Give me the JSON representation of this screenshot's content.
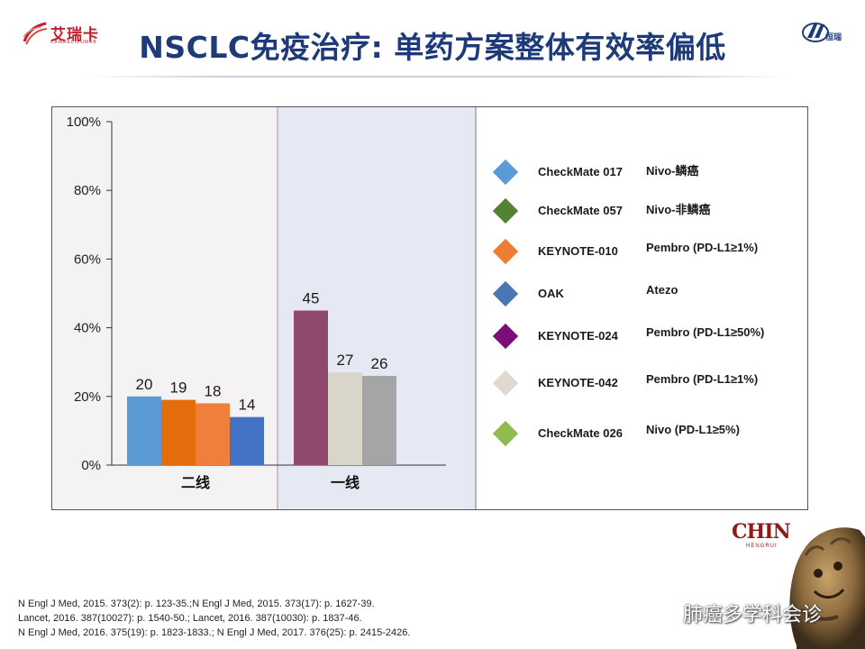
{
  "header": {
    "title": "NSCLC免疫治疗: 单药方案整体有效率偏低",
    "left_logo": {
      "brand": "艾瑞卡",
      "subtitle": "CAMRELIZUMAB",
      "icon": "ribbon-logo-icon"
    },
    "right_logo": {
      "text": "恒瑞",
      "icon": "hengrui-logo-icon"
    }
  },
  "colors": {
    "title": "#1e3a78",
    "panel_left_bg": "#f4f2f2",
    "panel_mid_bg": "#e6e9f4"
  },
  "chart_data": {
    "type": "bar",
    "categories": [
      "二线",
      "一线"
    ],
    "ylim": [
      0,
      100
    ],
    "y_ticks": [
      {
        "value": 0,
        "label": "0%"
      },
      {
        "value": 20,
        "label": "20%"
      },
      {
        "value": 40,
        "label": "40%"
      },
      {
        "value": 60,
        "label": "60%"
      },
      {
        "value": 80,
        "label": "80%"
      },
      {
        "value": 100,
        "label": "100%"
      }
    ],
    "groups": [
      {
        "category": "二线",
        "bars": [
          {
            "series": "CheckMate 017",
            "value": 20,
            "label": "20",
            "color": "#5b9bd5"
          },
          {
            "series": "CheckMate 057",
            "value": 19,
            "label": "19",
            "color": "#e46c0a"
          },
          {
            "series": "KEYNOTE-010",
            "value": 18,
            "label": "18",
            "color": "#f07f3c"
          },
          {
            "series": "OAK",
            "value": 14,
            "label": "14",
            "color": "#4472c4"
          }
        ]
      },
      {
        "category": "一线",
        "bars": [
          {
            "series": "KEYNOTE-024",
            "value": 45,
            "label": "45",
            "color": "#8e4a6c"
          },
          {
            "series": "KEYNOTE-042",
            "value": 27,
            "label": "27",
            "color": "#d9d5c9"
          },
          {
            "series": "CheckMate 026",
            "value": 26,
            "label": "26",
            "color": "#a5a5a5"
          }
        ]
      }
    ],
    "legend": [
      {
        "name": "CheckMate 017",
        "desc": "Nivo-鳞癌",
        "color": "#5b9bd5"
      },
      {
        "name": "CheckMate 057",
        "desc": "Nivo-非鳞癌",
        "color": "#548235"
      },
      {
        "name": "KEYNOTE-010",
        "desc": "Pembro (PD-L1≥1%)",
        "color": "#ed7d31"
      },
      {
        "name": "OAK",
        "desc": "Atezo",
        "color": "#4a76b5"
      },
      {
        "name": "KEYNOTE-024",
        "desc": "Pembro (PD-L1≥50%)",
        "color": "#7b0e7b"
      },
      {
        "name": "KEYNOTE-042",
        "desc": "Pembro (PD-L1≥1%)",
        "color": "#dedad0"
      },
      {
        "name": "CheckMate 026",
        "desc": "Nivo (PD-L1≥5%)",
        "color": "#8fbc4e"
      }
    ],
    "legend_placement": "right",
    "grid": false
  },
  "references": [
    "N Engl J Med, 2015. 373(2): p. 123-35.;N Engl J Med, 2015. 373(17): p. 1627-39.",
    "Lancet, 2016. 387(10027): p. 1540-50.; Lancet, 2016. 387(10030): p. 1837-46.",
    "N Engl J Med, 2016. 375(19): p. 1823-1833.; N Engl J Med, 2017. 376(25): p. 2415-2426."
  ],
  "footer": {
    "chin_logo": {
      "big": "CHIN",
      "small": "HENGRUI"
    },
    "watermark_text": "肺癌多学科会诊",
    "watermark_icon": "wechat-icon",
    "lion_icon": "stone-lion-icon"
  }
}
